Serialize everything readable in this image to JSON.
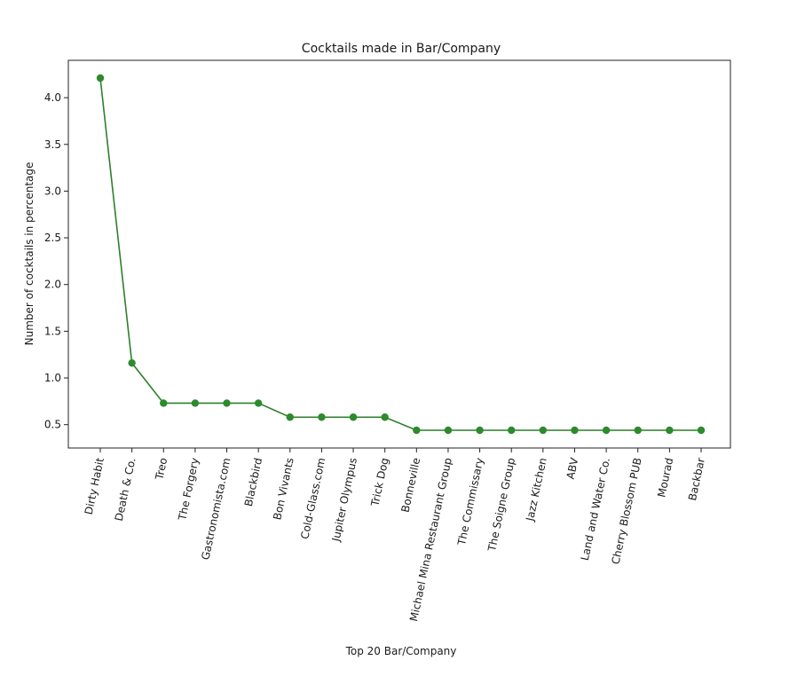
{
  "chart_data": {
    "type": "line",
    "title": "Cocktails made in Bar/Company",
    "xlabel": "Top 20 Bar/Company",
    "ylabel": "Number of cocktails in percentage",
    "categories": [
      "Dirty Habit",
      "Death & Co.",
      "Treo",
      "The Forgery",
      "Gastronomista.com",
      "Blackbird",
      "Bon Vivants",
      "Cold-Glass.com",
      "Jupiter Olympus",
      "Trick Dog",
      "Bonneville",
      "Michael Mina Restaurant Group",
      "The Commissary",
      "The Soigne Group",
      "Jazz Kitchen",
      "ABV",
      "Land and Water Co.",
      "Cherry Blossom PUB",
      "Mourad",
      "Backbar"
    ],
    "series": [
      {
        "values": [
          4.21,
          1.16,
          0.73,
          0.73,
          0.73,
          0.73,
          0.58,
          0.58,
          0.58,
          0.58,
          0.44,
          0.44,
          0.44,
          0.44,
          0.44,
          0.44,
          0.44,
          0.44,
          0.44,
          0.44
        ]
      }
    ],
    "yticks": [
      0.5,
      1.0,
      1.5,
      2.0,
      2.5,
      3.0,
      3.5,
      4.0
    ],
    "ytick_labels": [
      "0.5",
      "1.0",
      "1.5",
      "2.0",
      "2.5",
      "3.0",
      "3.5",
      "4.0"
    ],
    "ylim": [
      0.25,
      4.4
    ],
    "grid": false,
    "line_color": "#2d7f2d",
    "marker_color": "#2d8a2d"
  }
}
